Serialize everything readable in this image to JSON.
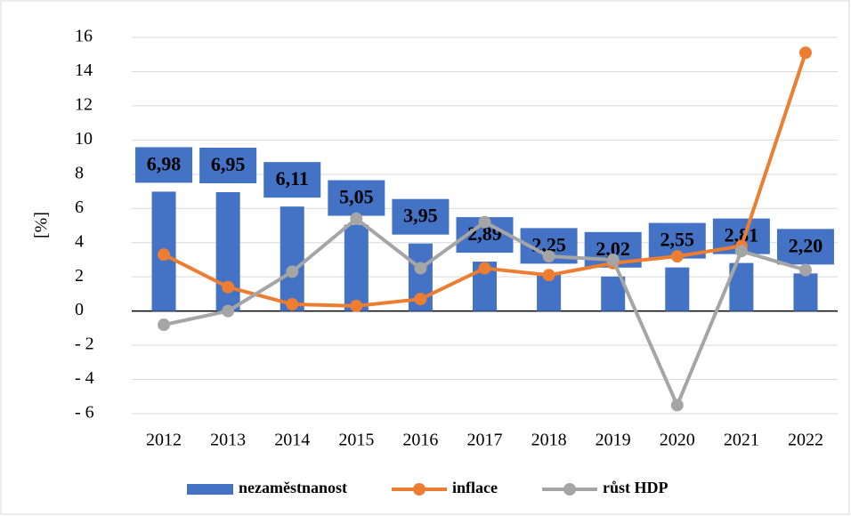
{
  "chart_data": {
    "type": "bar",
    "y_label": "[%]",
    "categories": [
      "2012",
      "2013",
      "2014",
      "2015",
      "2016",
      "2017",
      "2018",
      "2019",
      "2020",
      "2021",
      "2022"
    ],
    "series": [
      {
        "name": "nezaměstnanost",
        "type": "bar",
        "color": "#4472c4",
        "values": [
          6.98,
          6.95,
          6.11,
          5.05,
          3.95,
          2.89,
          2.25,
          2.02,
          2.55,
          2.81,
          2.2
        ],
        "value_labels": [
          "6,98",
          "6,95",
          "6,11",
          "5,05",
          "3,95",
          "2,89",
          "2,25",
          "2,02",
          "2,55",
          "2,81",
          "2,20"
        ]
      },
      {
        "name": "inflace",
        "type": "line",
        "color": "#ed7d31",
        "values": [
          3.3,
          1.4,
          0.4,
          0.3,
          0.7,
          2.5,
          2.1,
          2.8,
          3.2,
          3.8,
          15.1
        ]
      },
      {
        "name": "růst HDP",
        "type": "line",
        "color": "#a5a5a5",
        "values": [
          -0.8,
          0.0,
          2.3,
          5.4,
          2.5,
          5.2,
          3.2,
          3.0,
          -5.5,
          3.5,
          2.4
        ]
      }
    ],
    "ylim": [
      -6,
      16
    ],
    "yticks": [
      {
        "value": -6,
        "label": "- 6"
      },
      {
        "value": -4,
        "label": "- 4"
      },
      {
        "value": -2,
        "label": "- 2"
      },
      0,
      2,
      4,
      6,
      8,
      10,
      12,
      14,
      16
    ],
    "grid": true,
    "legend": "bottom"
  }
}
